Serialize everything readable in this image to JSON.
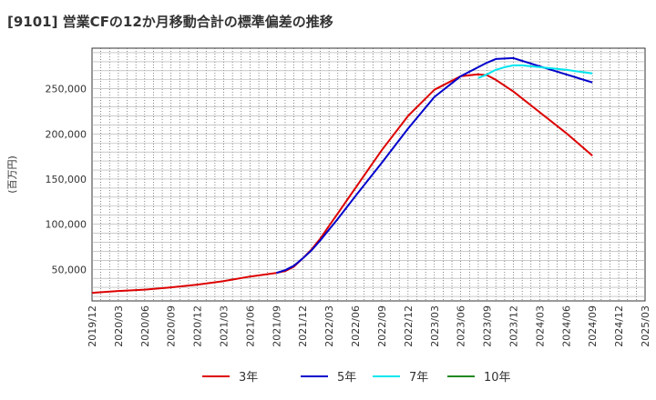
{
  "chart_data": {
    "type": "line",
    "title": "[9101]  営業CFの12か月移動合計の標準偏差の推移",
    "xlabel": "",
    "ylabel": "(百万円)",
    "ylim": [
      15000,
      295000
    ],
    "yticks": [
      50000,
      100000,
      150000,
      200000,
      250000
    ],
    "ytick_labels": [
      "50,000",
      "100,000",
      "150,000",
      "200,000",
      "250,000"
    ],
    "xlim": [
      "2019-12",
      "2025-03"
    ],
    "xtick_labels": [
      "2019/12",
      "2020/03",
      "2020/06",
      "2020/09",
      "2020/12",
      "2021/03",
      "2021/06",
      "2021/09",
      "2021/12",
      "2022/03",
      "2022/06",
      "2022/09",
      "2022/12",
      "2023/03",
      "2023/06",
      "2023/09",
      "2023/12",
      "2024/03",
      "2024/06",
      "2024/09",
      "2024/12",
      "2025/03"
    ],
    "grid": true,
    "legend_position": "bottom",
    "series": [
      {
        "name": "3年",
        "color": "#dd0000",
        "points": [
          [
            "2019-12",
            24000
          ],
          [
            "2020-03",
            26000
          ],
          [
            "2020-06",
            27500
          ],
          [
            "2020-09",
            30000
          ],
          [
            "2020-12",
            33000
          ],
          [
            "2021-03",
            37000
          ],
          [
            "2021-06",
            42000
          ],
          [
            "2021-09",
            46000
          ],
          [
            "2021-10",
            48000
          ],
          [
            "2021-11",
            53000
          ],
          [
            "2021-12",
            62000
          ],
          [
            "2022-01",
            72000
          ],
          [
            "2022-02",
            84000
          ],
          [
            "2022-03",
            98000
          ],
          [
            "2022-04",
            112000
          ],
          [
            "2022-06",
            140000
          ],
          [
            "2022-09",
            182000
          ],
          [
            "2022-12",
            220000
          ],
          [
            "2023-03",
            249000
          ],
          [
            "2023-06",
            264000
          ],
          [
            "2023-08",
            266000
          ],
          [
            "2023-09",
            265000
          ],
          [
            "2023-10",
            260000
          ],
          [
            "2023-12",
            247000
          ],
          [
            "2024-03",
            224000
          ],
          [
            "2024-06",
            201000
          ],
          [
            "2024-09",
            176000
          ]
        ]
      },
      {
        "name": "5年",
        "color": "#0000cc",
        "points": [
          [
            "2021-09",
            46000
          ],
          [
            "2021-10",
            49000
          ],
          [
            "2021-11",
            54000
          ],
          [
            "2021-12",
            62000
          ],
          [
            "2022-01",
            71000
          ],
          [
            "2022-02",
            82000
          ],
          [
            "2022-03",
            94000
          ],
          [
            "2022-04",
            106000
          ],
          [
            "2022-06",
            131000
          ],
          [
            "2022-09",
            168000
          ],
          [
            "2022-12",
            206000
          ],
          [
            "2023-03",
            241000
          ],
          [
            "2023-06",
            264000
          ],
          [
            "2023-09",
            279000
          ],
          [
            "2023-10",
            283000
          ],
          [
            "2023-12",
            284000
          ],
          [
            "2024-03",
            275000
          ],
          [
            "2024-06",
            266000
          ],
          [
            "2024-09",
            257000
          ]
        ]
      },
      {
        "name": "7年",
        "color": "#00e5ee",
        "points": [
          [
            "2023-08",
            262000
          ],
          [
            "2023-09",
            266000
          ],
          [
            "2023-10",
            271000
          ],
          [
            "2023-11",
            274000
          ],
          [
            "2023-12",
            276000
          ],
          [
            "2024-01",
            276000
          ],
          [
            "2024-03",
            274000
          ],
          [
            "2024-06",
            271000
          ],
          [
            "2024-09",
            267000
          ]
        ]
      },
      {
        "name": "10年",
        "color": "#228822",
        "points": []
      }
    ]
  }
}
